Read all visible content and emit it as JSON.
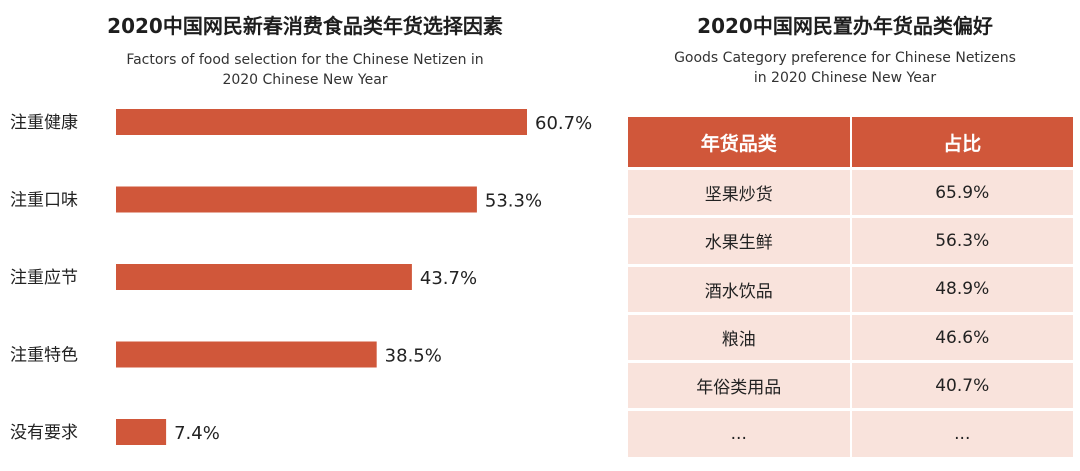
{
  "chart_data": [
    {
      "type": "bar",
      "orientation": "horizontal",
      "title": "2020中国网民新春消费食品类年货选择因素",
      "subtitle": [
        "Factors of food selection for the Chinese Netizen  in",
        "2020 Chinese New Year"
      ],
      "categories": [
        "注重健康",
        "注重口味",
        "注重应节",
        "注重特色",
        "没有要求"
      ],
      "values": [
        60.7,
        53.3,
        43.7,
        38.5,
        7.4
      ],
      "value_labels": [
        "60.7%",
        "53.3%",
        "43.7%",
        "38.5%",
        "7.4%"
      ],
      "unit": "%",
      "xlim": [
        0,
        60.7
      ],
      "grid": false,
      "colors": {
        "bar": "#d0573a"
      }
    },
    {
      "type": "table",
      "title": "2020中国网民置办年货品类偏好",
      "subtitle": [
        "Goods Category preference for Chinese Netizens",
        "in 2020 Chinese New Year"
      ],
      "columns": [
        "年货品类",
        "占比"
      ],
      "rows": [
        [
          "坚果炒货",
          "65.9%"
        ],
        [
          "水果生鲜",
          "56.3%"
        ],
        [
          "酒水饮品",
          "48.9%"
        ],
        [
          "粮油",
          "46.6%"
        ],
        [
          "年俗类用品",
          "40.7%"
        ],
        [
          "...",
          "..."
        ]
      ],
      "colors": {
        "header_bg": "#d0573a",
        "row_bg": "#f9e3dc"
      }
    }
  ]
}
